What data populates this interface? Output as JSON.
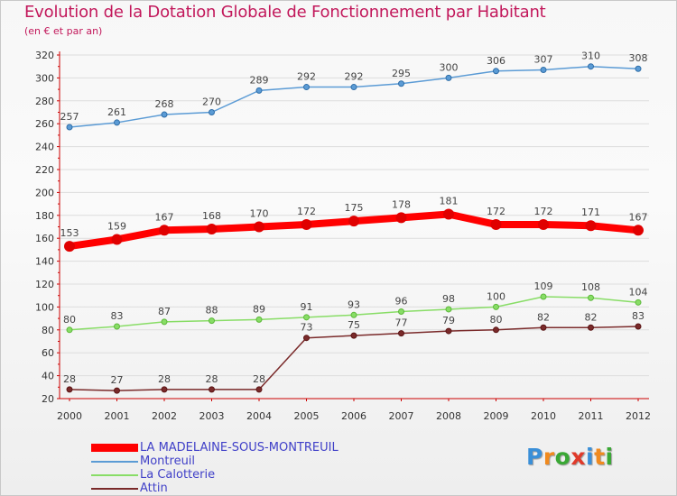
{
  "title": "Evolution de la Dotation Globale de Fonctionnement par Habitant",
  "subtitle": "(en € et par an)",
  "chart_data": {
    "type": "line",
    "title": "Evolution de la Dotation Globale de Fonctionnement par Habitant",
    "subtitle": "(en € et par an)",
    "xlabel": "",
    "ylabel": "",
    "ylim": [
      20,
      320
    ],
    "ytick_step": 20,
    "grid": true,
    "categories": [
      "2000",
      "2001",
      "2002",
      "2003",
      "2004",
      "2005",
      "2006",
      "2007",
      "2008",
      "2009",
      "2010",
      "2011",
      "2012"
    ],
    "yticks": [
      "20",
      "40",
      "60",
      "80",
      "100",
      "120",
      "140",
      "160",
      "180",
      "200",
      "220",
      "240",
      "260",
      "280",
      "300",
      "320"
    ],
    "series": [
      {
        "name": "Montreuil",
        "key": "montreuil",
        "color": "#5b9bd5",
        "dot": "#2f6ea8",
        "values": [
          257,
          261,
          268,
          270,
          289,
          292,
          292,
          295,
          300,
          306,
          307,
          310,
          308
        ]
      },
      {
        "name": "LA MADELAINE-SOUS-MONTREUIL",
        "key": "madelaine",
        "color": "#ff0000",
        "dot": "#e00000",
        "values": [
          153,
          159,
          167,
          168,
          170,
          172,
          175,
          178,
          181,
          172,
          172,
          171,
          167
        ]
      },
      {
        "name": "La Calotterie",
        "key": "calotterie",
        "color": "#88dd66",
        "dot": "#5cb83a",
        "values": [
          80,
          83,
          87,
          88,
          89,
          91,
          93,
          96,
          98,
          100,
          109,
          108,
          104
        ]
      },
      {
        "name": "Attin",
        "key": "attin",
        "color": "#7a2a2a",
        "dot": "#5a1515",
        "values": [
          28,
          27,
          28,
          28,
          28,
          73,
          75,
          77,
          79,
          80,
          82,
          82,
          83
        ]
      }
    ],
    "legend_position": "bottom-left"
  },
  "legend": [
    {
      "label": "LA MADELAINE-SOUS-MONTREUIL",
      "color": "#ff0000",
      "thick": "9"
    },
    {
      "label": "Montreuil",
      "color": "#5b9bd5",
      "thick": "2"
    },
    {
      "label": "La Calotterie",
      "color": "#88dd66",
      "thick": "2"
    },
    {
      "label": "Attin",
      "color": "#7a2a2a",
      "thick": "2"
    }
  ],
  "logo": {
    "text": "Proxiti",
    "letters": [
      "P",
      "r",
      "o",
      "x",
      "i",
      "t",
      "i"
    ],
    "colors": [
      "#3a8fd8",
      "#f08a1e",
      "#3aa835",
      "#e03a2a",
      "#3a8fd8",
      "#f08a1e",
      "#3aa835"
    ]
  }
}
